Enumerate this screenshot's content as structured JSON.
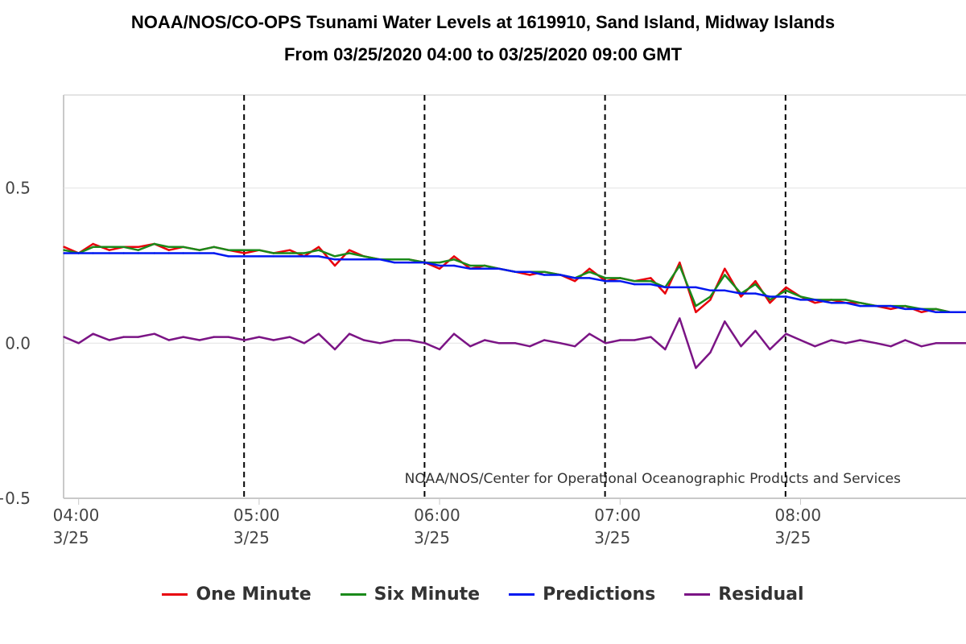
{
  "chart_data": {
    "type": "line",
    "title": "NOAA/NOS/CO-OPS Tsunami Water Levels at 1619910, Sand Island, Midway Islands",
    "subtitle": "From 03/25/2020 04:00 to 03/25/2020 09:00 GMT",
    "watermark": "NOAA/NOS/Center for Operational Oceanographic Products and Services",
    "xlim": [
      "03/25/2020 03:55",
      "03/25/2020 08:55"
    ],
    "ylim": [
      -0.5,
      0.8
    ],
    "grid": true,
    "legend_position": "bottom",
    "y_ticks": [
      {
        "value": 0.5,
        "label": "0.5"
      },
      {
        "value": 0.0,
        "label": "0.0"
      },
      {
        "value": -0.5,
        "label": "−0.5"
      }
    ],
    "x_ticks": [
      {
        "time": "04:00",
        "date": "3/25"
      },
      {
        "time": "05:00",
        "date": "3/25"
      },
      {
        "time": "06:00",
        "date": "3/25"
      },
      {
        "time": "07:00",
        "date": "3/25"
      },
      {
        "time": "08:00",
        "date": "3/25"
      }
    ],
    "x_unit": "hours (GMT), 03/25/2020",
    "day_lines": [
      "04:55",
      "05:55",
      "06:55",
      "07:55"
    ],
    "series": [
      {
        "name": "One Minute",
        "color": "#e8000b",
        "x": [
          3.92,
          4.0,
          4.08,
          4.17,
          4.25,
          4.33,
          4.42,
          4.5,
          4.58,
          4.67,
          4.75,
          4.83,
          4.92,
          5.0,
          5.08,
          5.17,
          5.25,
          5.33,
          5.42,
          5.5,
          5.58,
          5.67,
          5.75,
          5.83,
          5.92,
          6.0,
          6.08,
          6.17,
          6.25,
          6.33,
          6.42,
          6.5,
          6.58,
          6.67,
          6.75,
          6.83,
          6.92,
          7.0,
          7.08,
          7.17,
          7.25,
          7.33,
          7.42,
          7.5,
          7.58,
          7.67,
          7.75,
          7.83,
          7.92,
          8.0,
          8.08,
          8.17,
          8.25,
          8.33,
          8.42,
          8.5,
          8.58,
          8.67,
          8.75,
          8.83,
          8.92
        ],
        "values": [
          0.31,
          0.29,
          0.32,
          0.3,
          0.31,
          0.31,
          0.32,
          0.3,
          0.31,
          0.3,
          0.31,
          0.3,
          0.29,
          0.3,
          0.29,
          0.3,
          0.28,
          0.31,
          0.25,
          0.3,
          0.28,
          0.27,
          0.27,
          0.27,
          0.26,
          0.24,
          0.28,
          0.24,
          0.25,
          0.24,
          0.23,
          0.22,
          0.23,
          0.22,
          0.2,
          0.24,
          0.2,
          0.21,
          0.2,
          0.21,
          0.16,
          0.26,
          0.1,
          0.14,
          0.24,
          0.15,
          0.2,
          0.13,
          0.18,
          0.15,
          0.13,
          0.14,
          0.13,
          0.13,
          0.12,
          0.11,
          0.12,
          0.1,
          0.11,
          0.1,
          0.1
        ]
      },
      {
        "name": "Six Minute",
        "color": "#1a8a1a",
        "x": [
          3.92,
          4.0,
          4.08,
          4.17,
          4.25,
          4.33,
          4.42,
          4.5,
          4.58,
          4.67,
          4.75,
          4.83,
          4.92,
          5.0,
          5.08,
          5.17,
          5.25,
          5.33,
          5.42,
          5.5,
          5.58,
          5.67,
          5.75,
          5.83,
          5.92,
          6.0,
          6.08,
          6.17,
          6.25,
          6.33,
          6.42,
          6.5,
          6.58,
          6.67,
          6.75,
          6.83,
          6.92,
          7.0,
          7.08,
          7.17,
          7.25,
          7.33,
          7.42,
          7.5,
          7.58,
          7.67,
          7.75,
          7.83,
          7.92,
          8.0,
          8.08,
          8.17,
          8.25,
          8.33,
          8.42,
          8.5,
          8.58,
          8.67,
          8.75,
          8.83,
          8.92
        ],
        "values": [
          0.3,
          0.29,
          0.31,
          0.31,
          0.31,
          0.3,
          0.32,
          0.31,
          0.31,
          0.3,
          0.31,
          0.3,
          0.3,
          0.3,
          0.29,
          0.29,
          0.29,
          0.3,
          0.28,
          0.29,
          0.28,
          0.27,
          0.27,
          0.27,
          0.26,
          0.26,
          0.27,
          0.25,
          0.25,
          0.24,
          0.23,
          0.23,
          0.23,
          0.22,
          0.21,
          0.23,
          0.21,
          0.21,
          0.2,
          0.2,
          0.18,
          0.25,
          0.12,
          0.15,
          0.22,
          0.16,
          0.19,
          0.14,
          0.17,
          0.15,
          0.14,
          0.14,
          0.14,
          0.13,
          0.12,
          0.12,
          0.12,
          0.11,
          0.11,
          0.1,
          0.1
        ]
      },
      {
        "name": "Predictions",
        "color": "#0018f0",
        "x": [
          3.92,
          4.0,
          4.08,
          4.17,
          4.25,
          4.33,
          4.42,
          4.5,
          4.58,
          4.67,
          4.75,
          4.83,
          4.92,
          5.0,
          5.08,
          5.17,
          5.25,
          5.33,
          5.42,
          5.5,
          5.58,
          5.67,
          5.75,
          5.83,
          5.92,
          6.0,
          6.08,
          6.17,
          6.25,
          6.33,
          6.42,
          6.5,
          6.58,
          6.67,
          6.75,
          6.83,
          6.92,
          7.0,
          7.08,
          7.17,
          7.25,
          7.33,
          7.42,
          7.5,
          7.58,
          7.67,
          7.75,
          7.83,
          7.92,
          8.0,
          8.08,
          8.17,
          8.25,
          8.33,
          8.42,
          8.5,
          8.58,
          8.67,
          8.75,
          8.83,
          8.92
        ],
        "values": [
          0.29,
          0.29,
          0.29,
          0.29,
          0.29,
          0.29,
          0.29,
          0.29,
          0.29,
          0.29,
          0.29,
          0.28,
          0.28,
          0.28,
          0.28,
          0.28,
          0.28,
          0.28,
          0.27,
          0.27,
          0.27,
          0.27,
          0.26,
          0.26,
          0.26,
          0.25,
          0.25,
          0.24,
          0.24,
          0.24,
          0.23,
          0.23,
          0.22,
          0.22,
          0.21,
          0.21,
          0.2,
          0.2,
          0.19,
          0.19,
          0.18,
          0.18,
          0.18,
          0.17,
          0.17,
          0.16,
          0.16,
          0.15,
          0.15,
          0.14,
          0.14,
          0.13,
          0.13,
          0.12,
          0.12,
          0.12,
          0.11,
          0.11,
          0.1,
          0.1,
          0.1
        ]
      },
      {
        "name": "Residual",
        "color": "#7b1485",
        "x": [
          3.92,
          4.0,
          4.08,
          4.17,
          4.25,
          4.33,
          4.42,
          4.5,
          4.58,
          4.67,
          4.75,
          4.83,
          4.92,
          5.0,
          5.08,
          5.17,
          5.25,
          5.33,
          5.42,
          5.5,
          5.58,
          5.67,
          5.75,
          5.83,
          5.92,
          6.0,
          6.08,
          6.17,
          6.25,
          6.33,
          6.42,
          6.5,
          6.58,
          6.67,
          6.75,
          6.83,
          6.92,
          7.0,
          7.08,
          7.17,
          7.25,
          7.33,
          7.42,
          7.5,
          7.58,
          7.67,
          7.75,
          7.83,
          7.92,
          8.0,
          8.08,
          8.17,
          8.25,
          8.33,
          8.42,
          8.5,
          8.58,
          8.67,
          8.75,
          8.83,
          8.92
        ],
        "values": [
          0.02,
          0.0,
          0.03,
          0.01,
          0.02,
          0.02,
          0.03,
          0.01,
          0.02,
          0.01,
          0.02,
          0.02,
          0.01,
          0.02,
          0.01,
          0.02,
          0.0,
          0.03,
          -0.02,
          0.03,
          0.01,
          0.0,
          0.01,
          0.01,
          0.0,
          -0.02,
          0.03,
          -0.01,
          0.01,
          0.0,
          0.0,
          -0.01,
          0.01,
          0.0,
          -0.01,
          0.03,
          0.0,
          0.01,
          0.01,
          0.02,
          -0.02,
          0.08,
          -0.08,
          -0.03,
          0.07,
          -0.01,
          0.04,
          -0.02,
          0.03,
          0.01,
          -0.01,
          0.01,
          0.0,
          0.01,
          0.0,
          -0.01,
          0.01,
          -0.01,
          0.0,
          0.0,
          0.0
        ]
      }
    ]
  }
}
